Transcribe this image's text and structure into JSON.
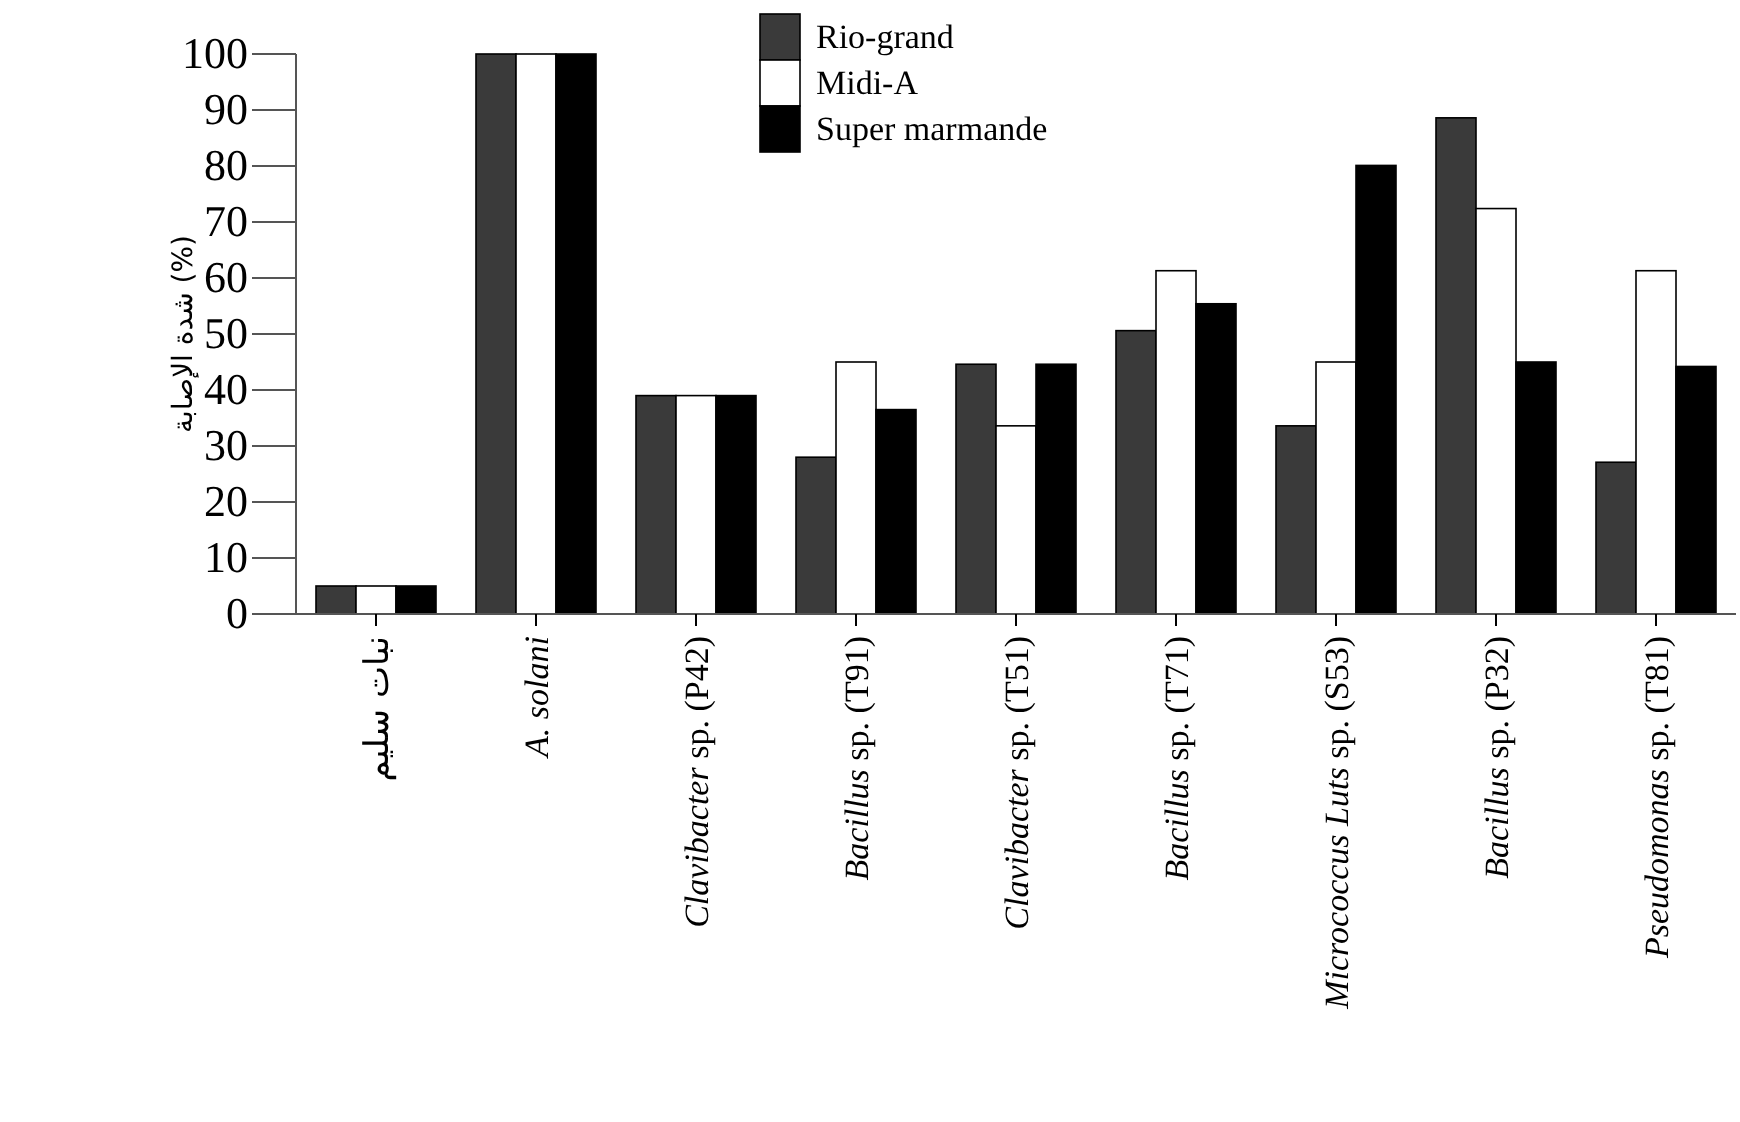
{
  "chart_data": {
    "type": "bar",
    "ylabel": "شدة الإصابة (%)",
    "categories": [
      "نبات سليم",
      "*A. solani*",
      "*Clavibacter* sp. (P42)",
      "*Bacillus* sp. (T91)",
      "*Clavibacter* sp. (T51)",
      "*Bacillus* sp. (T71)",
      "*Micrococcus Luts* sp. (S53)",
      "*Bacillus* sp. (P32)",
      "*Pseudomonas* sp. (T81)"
    ],
    "series": [
      {
        "name": "Rio-grand",
        "color": "#3a3a3a",
        "values": [
          5,
          100,
          39,
          28,
          44.6,
          50.6,
          33.6,
          88.6,
          27.1
        ]
      },
      {
        "name": "Midi-A",
        "color": "#ffffff",
        "values": [
          5,
          100,
          39,
          45,
          33.6,
          61.3,
          45,
          72.4,
          61.3
        ]
      },
      {
        "name": "Super marmande",
        "color": "#000000",
        "values": [
          5,
          100,
          39,
          36.5,
          44.6,
          55.4,
          80.1,
          45,
          44.2
        ]
      }
    ],
    "ylim": [
      0,
      100
    ],
    "yticks": [
      0,
      10,
      20,
      30,
      40,
      50,
      60,
      70,
      80,
      90,
      100
    ],
    "legend": "top"
  }
}
